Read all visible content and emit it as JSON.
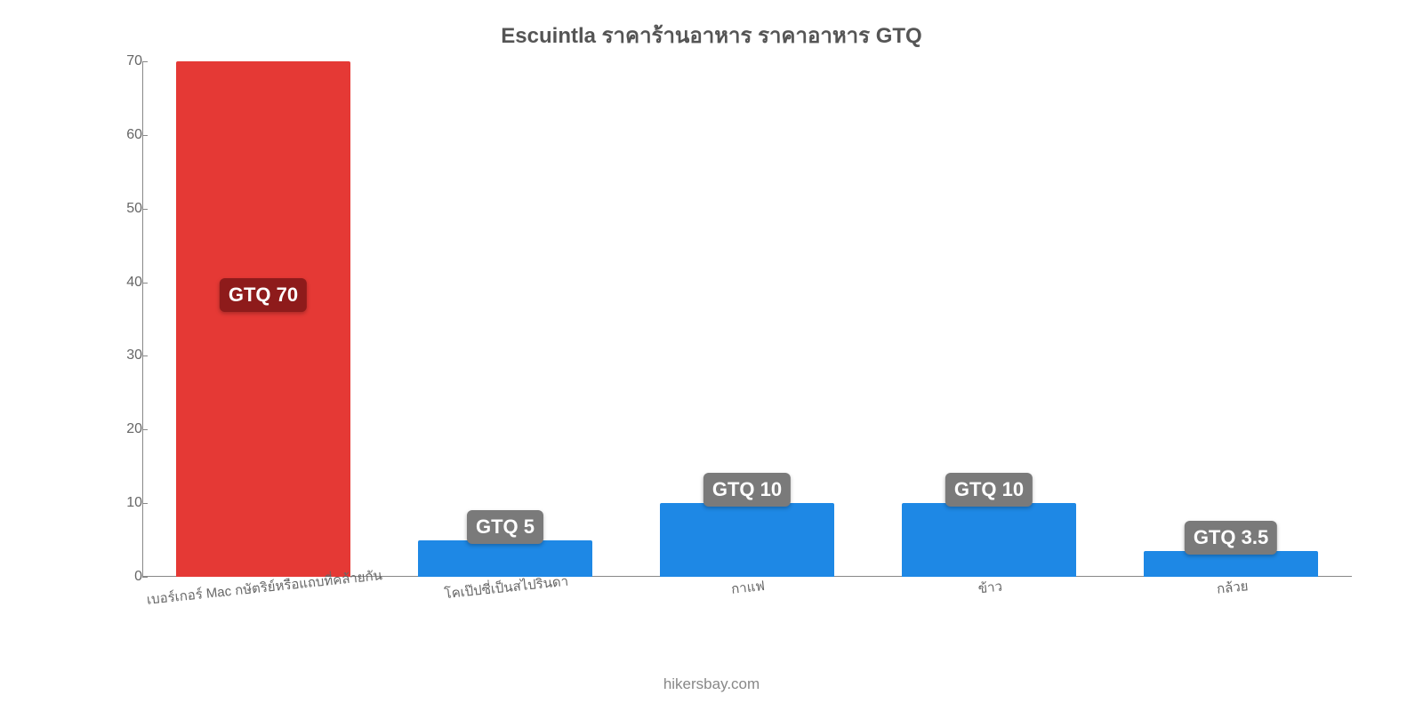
{
  "chart": {
    "type": "bar",
    "title": "Escuintla ราคาร้านอาหาร ราคาอาหาร GTQ",
    "title_fontsize": 24,
    "title_color": "#555555",
    "attribution": "hikersbay.com",
    "attribution_fontsize": 17,
    "attribution_color": "#888888",
    "background_color": "#ffffff",
    "axis_color": "#888888",
    "tick_label_color": "#666666",
    "tick_fontsize": 16,
    "x_label_fontsize": 15,
    "x_label_rotation_deg": -6,
    "badge_fontsize": 22,
    "bar_width_pct": 72,
    "ylim": [
      0,
      70
    ],
    "yticks": [
      0,
      10,
      20,
      30,
      40,
      50,
      60,
      70
    ],
    "categories": [
      "เบอร์เกอร์ Mac กษัตริย์หรือแถบที่คล้ายกัน",
      "โคเป๊ปซี่เป็นสไปรินดา",
      "กาแฟ",
      "ข้าว",
      "กล้วย"
    ],
    "values": [
      70,
      5,
      10,
      10,
      3.5
    ],
    "value_labels": [
      "GTQ 70",
      "GTQ 5",
      "GTQ 10",
      "GTQ 10",
      "GTQ 3.5"
    ],
    "bar_colors": [
      "#e53935",
      "#1e88e5",
      "#1e88e5",
      "#1e88e5",
      "#1e88e5"
    ],
    "badge_bg_colors": [
      "#8e1b1b",
      "#7a7a7a",
      "#7a7a7a",
      "#7a7a7a",
      "#7a7a7a"
    ],
    "badge_text_color": "#ffffff"
  }
}
